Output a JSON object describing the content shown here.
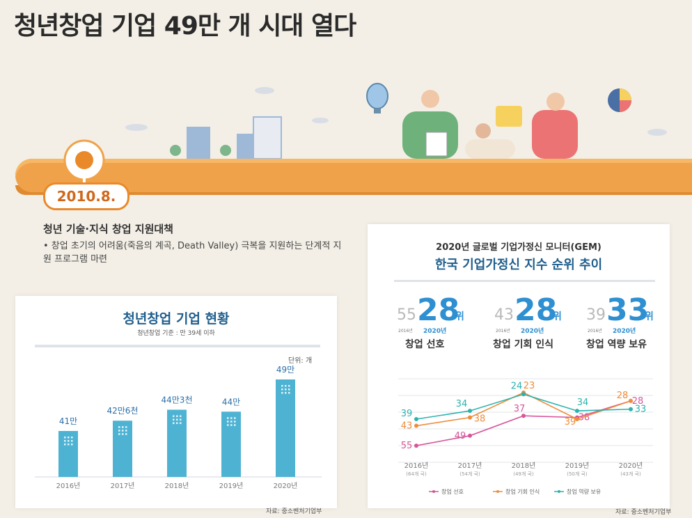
{
  "title": "청년창업 기업 49만 개 시대 열다",
  "timeline": {
    "date": "2010.8.",
    "policy_title": "청년 기술·지식 창업 지원대책",
    "policy_desc": "• 창업 초기의 어려움(죽음의 계곡, Death Valley) 극복을 지원하는 단계적 지원 프로그램 마련"
  },
  "left_card": {
    "title": "청년창업 기업 현황",
    "subtitle": "청년창업 기준 : 만 39세 이하",
    "unit": "단위: 개",
    "source": "자료: 중소벤처기업부"
  },
  "right_card": {
    "pre_title": "2020년 글로벌 기업가정신 모니터(GEM)",
    "title": "한국 기업가정신 지수 순위 추이",
    "source": "자료: 중소벤처기업부",
    "ranks": [
      {
        "prev": "55",
        "current": "28",
        "suffix": "위",
        "prev_year": "2016년",
        "cur_year": "2020년",
        "label": "창업 선호"
      },
      {
        "prev": "43",
        "current": "28",
        "suffix": "위",
        "prev_year": "2016년",
        "cur_year": "2020년",
        "label": "창업 기회 인식"
      },
      {
        "prev": "39",
        "current": "33",
        "suffix": "위",
        "prev_year": "2016년",
        "cur_year": "2020년",
        "label": "창업 역량 보유"
      }
    ]
  },
  "chart_data": [
    {
      "type": "bar",
      "title": "청년창업 기업 현황",
      "categories": [
        "2016년",
        "2017년",
        "2018년",
        "2019년",
        "2020년"
      ],
      "values": [
        410000,
        426000,
        443000,
        440000,
        490000
      ],
      "data_labels": [
        "41만",
        "42만6천",
        "44만3천",
        "44만",
        "49만"
      ],
      "ylabel": "단위: 개",
      "ylim": [
        0,
        500000
      ]
    },
    {
      "type": "line",
      "title": "한국 기업가정신 지수 순위 추이",
      "categories": [
        "2016년",
        "2017년",
        "2018년",
        "2019년",
        "2020년"
      ],
      "category_subs": [
        "(64개 국)",
        "(54개 국)",
        "(49개 국)",
        "(50개 국)",
        "(43개 국)"
      ],
      "series": [
        {
          "name": "창업 선호",
          "color": "#d6559a",
          "values": [
            55,
            49,
            37,
            38,
            28
          ]
        },
        {
          "name": "창업 기회 인식",
          "color": "#ef8c3a",
          "values": [
            43,
            38,
            23,
            39,
            28
          ]
        },
        {
          "name": "창업 역량 보유",
          "color": "#2bb3ad",
          "values": [
            39,
            34,
            24,
            34,
            33
          ]
        }
      ],
      "ylim": [
        60,
        18
      ]
    }
  ]
}
